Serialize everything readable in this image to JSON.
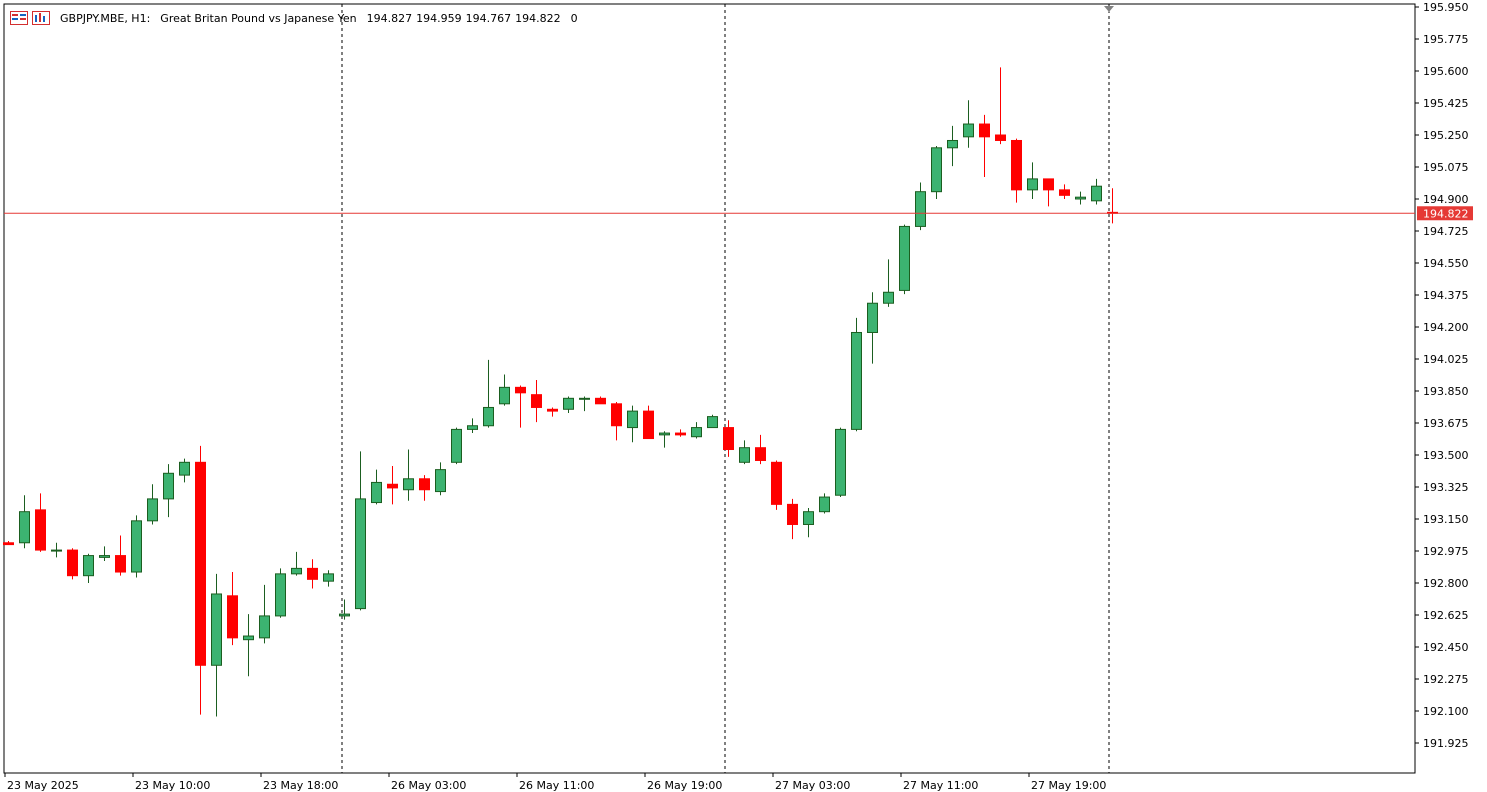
{
  "header": {
    "symbol": "GBPJPY.MBE, H1:",
    "description": "Great Britan Pound vs Japanese Yen",
    "open": "194.827",
    "high": "194.959",
    "low": "194.767",
    "close": "194.822",
    "volume": "0"
  },
  "price_axis": {
    "labels": [
      "195.950",
      "195.775",
      "195.600",
      "195.425",
      "195.250",
      "195.075",
      "194.900",
      "194.725",
      "194.550",
      "194.375",
      "194.200",
      "194.025",
      "193.850",
      "193.675",
      "193.500",
      "193.325",
      "193.150",
      "192.975",
      "192.800",
      "192.625",
      "192.450",
      "192.275",
      "192.100",
      "191.925"
    ],
    "current_price_label": "194.822"
  },
  "time_axis": {
    "labels": [
      "23 May 2025",
      "23 May 10:00",
      "23 May 18:00",
      "26 May 03:00",
      "26 May 11:00",
      "26 May 19:00",
      "27 May 03:00",
      "27 May 11:00",
      "27 May 19:00"
    ]
  },
  "colors": {
    "bull": "#3cb371",
    "bear": "#ff0000",
    "price_line": "#e53935",
    "grid": "#000000"
  },
  "chart_data": {
    "type": "candlestick",
    "symbol": "GBPJPY.MBE",
    "timeframe": "H1",
    "ylim": [
      191.85,
      195.97
    ],
    "current_price": 194.822,
    "period_separators": [
      "23 May 18:00 bar +1",
      "26 May 19:00",
      "27 May 19:00 bar +1"
    ],
    "candles": [
      {
        "o": 193.02,
        "h": 193.03,
        "l": 193.01,
        "c": 193.01
      },
      {
        "o": 193.02,
        "h": 193.28,
        "l": 192.99,
        "c": 193.19
      },
      {
        "o": 193.2,
        "h": 193.29,
        "l": 192.97,
        "c": 192.98
      },
      {
        "o": 192.98,
        "h": 193.02,
        "l": 192.94,
        "c": 192.98
      },
      {
        "o": 192.98,
        "h": 192.99,
        "l": 192.82,
        "c": 192.84
      },
      {
        "o": 192.84,
        "h": 192.96,
        "l": 192.8,
        "c": 192.95
      },
      {
        "o": 192.94,
        "h": 193.0,
        "l": 192.92,
        "c": 192.95
      },
      {
        "o": 192.95,
        "h": 193.06,
        "l": 192.84,
        "c": 192.86
      },
      {
        "o": 192.86,
        "h": 193.17,
        "l": 192.83,
        "c": 193.14
      },
      {
        "o": 193.14,
        "h": 193.34,
        "l": 193.12,
        "c": 193.26
      },
      {
        "o": 193.26,
        "h": 193.45,
        "l": 193.16,
        "c": 193.4
      },
      {
        "o": 193.39,
        "h": 193.48,
        "l": 193.35,
        "c": 193.46
      },
      {
        "o": 193.46,
        "h": 193.55,
        "l": 192.08,
        "c": 192.35
      },
      {
        "o": 192.35,
        "h": 192.85,
        "l": 192.07,
        "c": 192.74
      },
      {
        "o": 192.73,
        "h": 192.86,
        "l": 192.46,
        "c": 192.5
      },
      {
        "o": 192.49,
        "h": 192.63,
        "l": 192.29,
        "c": 192.51
      },
      {
        "o": 192.5,
        "h": 192.79,
        "l": 192.47,
        "c": 192.62
      },
      {
        "o": 192.62,
        "h": 192.88,
        "l": 192.61,
        "c": 192.85
      },
      {
        "o": 192.85,
        "h": 192.97,
        "l": 192.84,
        "c": 192.88
      },
      {
        "o": 192.88,
        "h": 192.93,
        "l": 192.77,
        "c": 192.82
      },
      {
        "o": 192.81,
        "h": 192.87,
        "l": 192.78,
        "c": 192.85
      },
      {
        "o": 192.62,
        "h": 192.71,
        "l": 192.6,
        "c": 192.63
      },
      {
        "o": 192.66,
        "h": 193.52,
        "l": 192.65,
        "c": 193.26
      },
      {
        "o": 193.24,
        "h": 193.42,
        "l": 193.23,
        "c": 193.35
      },
      {
        "o": 193.34,
        "h": 193.44,
        "l": 193.23,
        "c": 193.32
      },
      {
        "o": 193.31,
        "h": 193.53,
        "l": 193.25,
        "c": 193.37
      },
      {
        "o": 193.37,
        "h": 193.39,
        "l": 193.25,
        "c": 193.31
      },
      {
        "o": 193.3,
        "h": 193.46,
        "l": 193.28,
        "c": 193.42
      },
      {
        "o": 193.46,
        "h": 193.65,
        "l": 193.45,
        "c": 193.64
      },
      {
        "o": 193.64,
        "h": 193.7,
        "l": 193.62,
        "c": 193.66
      },
      {
        "o": 193.66,
        "h": 194.02,
        "l": 193.65,
        "c": 193.76
      },
      {
        "o": 193.78,
        "h": 193.94,
        "l": 193.77,
        "c": 193.87
      },
      {
        "o": 193.87,
        "h": 193.88,
        "l": 193.65,
        "c": 193.84
      },
      {
        "o": 193.83,
        "h": 193.91,
        "l": 193.68,
        "c": 193.76
      },
      {
        "o": 193.75,
        "h": 193.76,
        "l": 193.71,
        "c": 193.74
      },
      {
        "o": 193.75,
        "h": 193.82,
        "l": 193.73,
        "c": 193.81
      },
      {
        "o": 193.81,
        "h": 193.82,
        "l": 193.74,
        "c": 193.81
      },
      {
        "o": 193.81,
        "h": 193.82,
        "l": 193.78,
        "c": 193.78
      },
      {
        "o": 193.78,
        "h": 193.79,
        "l": 193.58,
        "c": 193.66
      },
      {
        "o": 193.65,
        "h": 193.77,
        "l": 193.57,
        "c": 193.74
      },
      {
        "o": 193.74,
        "h": 193.77,
        "l": 193.59,
        "c": 193.59
      },
      {
        "o": 193.61,
        "h": 193.63,
        "l": 193.54,
        "c": 193.62
      },
      {
        "o": 193.62,
        "h": 193.64,
        "l": 193.6,
        "c": 193.61
      },
      {
        "o": 193.6,
        "h": 193.68,
        "l": 193.59,
        "c": 193.65
      },
      {
        "o": 193.65,
        "h": 193.72,
        "l": 193.65,
        "c": 193.71
      },
      {
        "o": 193.65,
        "h": 193.69,
        "l": 193.49,
        "c": 193.53
      },
      {
        "o": 193.46,
        "h": 193.58,
        "l": 193.45,
        "c": 193.54
      },
      {
        "o": 193.54,
        "h": 193.61,
        "l": 193.45,
        "c": 193.47
      },
      {
        "o": 193.46,
        "h": 193.47,
        "l": 193.2,
        "c": 193.23
      },
      {
        "o": 193.23,
        "h": 193.26,
        "l": 193.04,
        "c": 193.12
      },
      {
        "o": 193.12,
        "h": 193.21,
        "l": 193.05,
        "c": 193.19
      },
      {
        "o": 193.19,
        "h": 193.29,
        "l": 193.18,
        "c": 193.27
      },
      {
        "o": 193.28,
        "h": 193.65,
        "l": 193.27,
        "c": 193.64
      },
      {
        "o": 193.64,
        "h": 194.25,
        "l": 193.63,
        "c": 194.17
      },
      {
        "o": 194.17,
        "h": 194.39,
        "l": 194.0,
        "c": 194.33
      },
      {
        "o": 194.33,
        "h": 194.57,
        "l": 194.31,
        "c": 194.39
      },
      {
        "o": 194.4,
        "h": 194.76,
        "l": 194.38,
        "c": 194.75
      },
      {
        "o": 194.75,
        "h": 194.99,
        "l": 194.73,
        "c": 194.94
      },
      {
        "o": 194.94,
        "h": 195.19,
        "l": 194.9,
        "c": 195.18
      },
      {
        "o": 195.18,
        "h": 195.3,
        "l": 195.08,
        "c": 195.22
      },
      {
        "o": 195.24,
        "h": 195.44,
        "l": 195.18,
        "c": 195.31
      },
      {
        "o": 195.31,
        "h": 195.36,
        "l": 195.02,
        "c": 195.24
      },
      {
        "o": 195.25,
        "h": 195.62,
        "l": 195.2,
        "c": 195.22
      },
      {
        "o": 195.22,
        "h": 195.23,
        "l": 194.88,
        "c": 194.95
      },
      {
        "o": 194.95,
        "h": 195.1,
        "l": 194.9,
        "c": 195.01
      },
      {
        "o": 195.01,
        "h": 195.01,
        "l": 194.86,
        "c": 194.95
      },
      {
        "o": 194.95,
        "h": 194.98,
        "l": 194.9,
        "c": 194.92
      },
      {
        "o": 194.9,
        "h": 194.94,
        "l": 194.87,
        "c": 194.91
      },
      {
        "o": 194.89,
        "h": 195.01,
        "l": 194.87,
        "c": 194.97
      },
      {
        "o": 194.827,
        "h": 194.959,
        "l": 194.767,
        "c": 194.822
      }
    ]
  }
}
